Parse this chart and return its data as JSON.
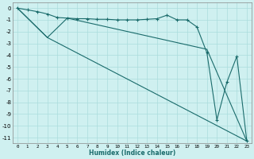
{
  "xlabel": "Humidex (Indice chaleur)",
  "bg_color": "#cff0f0",
  "grid_color": "#aadddd",
  "line_color": "#1a6b6b",
  "xlim": [
    -0.5,
    23.5
  ],
  "ylim": [
    -11.5,
    0.5
  ],
  "yticks": [
    0,
    -1,
    -2,
    -3,
    -4,
    -5,
    -6,
    -7,
    -8,
    -9,
    -10,
    -11
  ],
  "xticks": [
    0,
    1,
    2,
    3,
    4,
    5,
    6,
    7,
    8,
    9,
    10,
    11,
    12,
    13,
    14,
    15,
    16,
    17,
    18,
    19,
    20,
    21,
    22,
    23
  ],
  "curve_x": [
    0,
    1,
    2,
    3,
    4,
    5,
    6,
    7,
    8,
    9,
    10,
    11,
    12,
    13,
    14,
    15,
    16,
    17,
    18,
    19,
    20,
    21,
    22,
    23
  ],
  "curve_y": [
    0,
    -0.15,
    -0.3,
    -0.5,
    -0.8,
    -0.85,
    -0.9,
    -0.9,
    -0.95,
    -0.95,
    -1.0,
    -1.0,
    -1.0,
    -0.95,
    -0.9,
    -0.6,
    -1.0,
    -1.0,
    -1.6,
    -3.8,
    -9.5,
    -6.3,
    -4.1,
    -11.3
  ],
  "line1_x": [
    0,
    3,
    23
  ],
  "line1_y": [
    0,
    -2.5,
    -11.3
  ],
  "line2_x": [
    0,
    3,
    5,
    19,
    23
  ],
  "line2_y": [
    0,
    -2.5,
    -0.85,
    -3.5,
    -11.3
  ]
}
